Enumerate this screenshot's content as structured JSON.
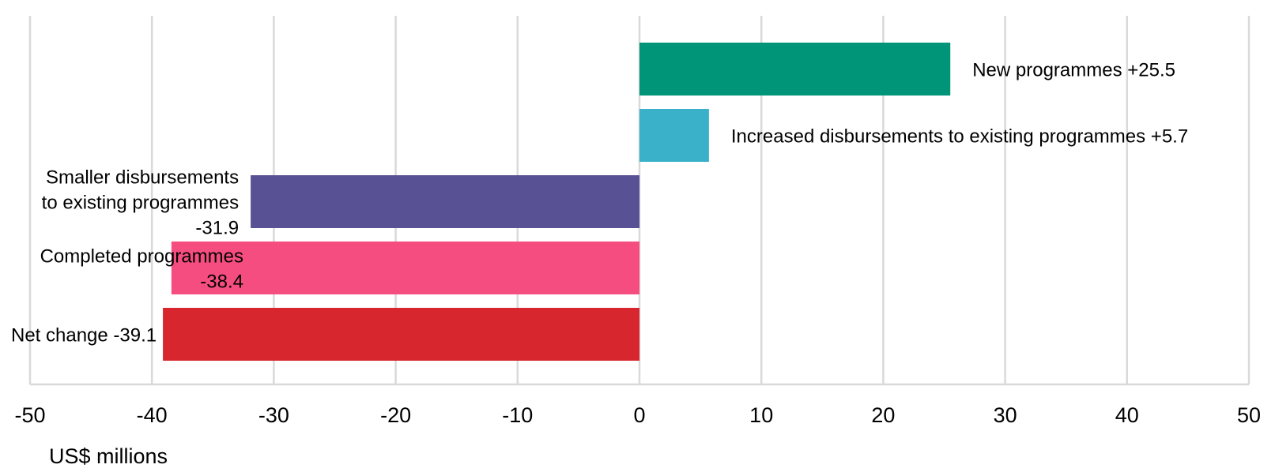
{
  "chart_data": {
    "type": "bar",
    "orientation": "horizontal",
    "xlabel": "US$ millions",
    "xlim": [
      -50,
      50
    ],
    "xticks": [
      -50,
      -40,
      -30,
      -20,
      -10,
      0,
      10,
      20,
      30,
      40,
      50
    ],
    "grid": true,
    "bars": [
      {
        "label_lines": [
          "New programmes +25.5"
        ],
        "value": 25.5,
        "color": "#009578"
      },
      {
        "label_lines": [
          "Increased disbursements to existing programmes +5.7"
        ],
        "value": 5.7,
        "color": "#3bb0c9"
      },
      {
        "label_lines": [
          "Smaller disbursements",
          "to existing programmes",
          "-31.9"
        ],
        "value": -31.9,
        "color": "#585193"
      },
      {
        "label_lines": [
          "Completed programmes",
          "-38.4"
        ],
        "value": -38.4,
        "color": "#f64d80"
      },
      {
        "label_lines": [
          "Net change -39.1"
        ],
        "value": -39.1,
        "color": "#d7262e"
      }
    ]
  }
}
